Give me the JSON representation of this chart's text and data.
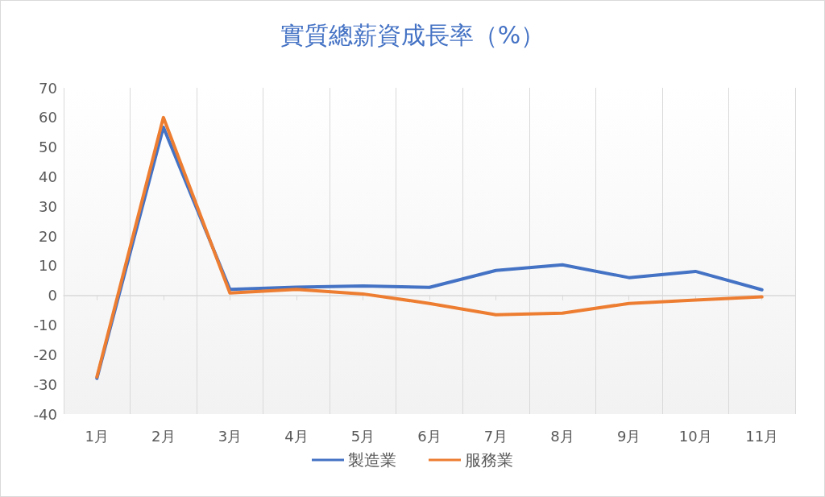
{
  "chart_data": {
    "type": "line",
    "title": "實質總薪資成長率（%）",
    "categories": [
      "1月",
      "2月",
      "3月",
      "4月",
      "5月",
      "6月",
      "7月",
      "8月",
      "9月",
      "10月",
      "11月"
    ],
    "series": [
      {
        "name": "製造業",
        "color": "#4472c4",
        "values": [
          -28,
          56.7,
          2,
          2.8,
          3.2,
          2.7,
          8.4,
          10.3,
          6,
          8.1,
          1.9
        ]
      },
      {
        "name": "服務業",
        "color": "#ed7d31",
        "values": [
          -27.5,
          60,
          0.8,
          2,
          0.5,
          -2.7,
          -6.5,
          -6,
          -2.7,
          -1.6,
          -0.5
        ]
      }
    ],
    "ylim": [
      -40,
      70
    ],
    "yticks": [
      -40,
      -30,
      -20,
      -10,
      0,
      10,
      20,
      30,
      40,
      50,
      60,
      70
    ],
    "grid": "x",
    "legend": "bottom",
    "marker": "none",
    "line_style": "solid"
  }
}
